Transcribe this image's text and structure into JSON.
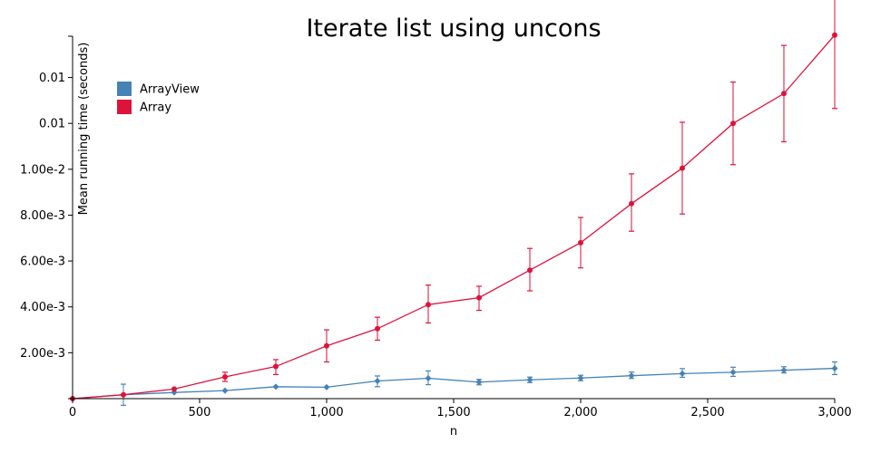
{
  "chart_data": {
    "type": "line",
    "title": "Iterate list using uncons",
    "xlabel": "n",
    "ylabel": "Mean running time (seconds)",
    "xlim": [
      0,
      3000
    ],
    "ylim": [
      0,
      0.0158
    ],
    "x_ticks": [
      {
        "value": 0,
        "label": "0"
      },
      {
        "value": 500,
        "label": "500"
      },
      {
        "value": 1000,
        "label": "1,000"
      },
      {
        "value": 1500,
        "label": "1,500"
      },
      {
        "value": 2000,
        "label": "2,000"
      },
      {
        "value": 2500,
        "label": "2,500"
      },
      {
        "value": 3000,
        "label": "3,000"
      }
    ],
    "y_ticks": [
      {
        "value": 0.002,
        "label": "2.00e-3"
      },
      {
        "value": 0.004,
        "label": "4.00e-3"
      },
      {
        "value": 0.006,
        "label": "6.00e-3"
      },
      {
        "value": 0.008,
        "label": "8.00e-3"
      },
      {
        "value": 0.01,
        "label": "1.00e-2"
      },
      {
        "value": 0.012,
        "label": "0.01"
      },
      {
        "value": 0.014,
        "label": "0.01"
      }
    ],
    "grid": false,
    "legend_position": "top-left",
    "x": [
      0,
      200,
      400,
      600,
      800,
      1000,
      1200,
      1400,
      1600,
      1800,
      2000,
      2200,
      2400,
      2600,
      2800,
      3000
    ],
    "series": [
      {
        "name": "ArrayView",
        "color": "#4682b4",
        "marker": "diamond",
        "values": [
          0.0,
          0.00017,
          0.00027,
          0.00035,
          0.00052,
          0.0005,
          0.00077,
          0.00089,
          0.00072,
          0.00082,
          0.0009,
          0.001,
          0.00109,
          0.00115,
          0.00124,
          0.00132
        ],
        "err_low": [
          0.0,
          0.00046,
          0.0,
          0.0,
          0.0,
          0.0,
          0.00025,
          0.00028,
          0.00012,
          0.00012,
          0.00012,
          0.00012,
          0.00016,
          0.00018,
          0.00012,
          0.00027
        ],
        "err_high": [
          0.0,
          0.00046,
          0.0,
          0.0,
          0.0,
          0.0,
          0.00022,
          0.00032,
          0.00012,
          0.00012,
          0.00012,
          0.00016,
          0.00022,
          0.00022,
          0.00015,
          0.00028
        ]
      },
      {
        "name": "Array",
        "color": "#dc143c",
        "marker": "circle",
        "values": [
          0.0,
          0.00017,
          0.00042,
          0.00095,
          0.0014,
          0.0023,
          0.00305,
          0.0041,
          0.0044,
          0.0056,
          0.0068,
          0.0085,
          0.01005,
          0.012,
          0.0133,
          0.01585
        ],
        "err_low": [
          0.0,
          0.0,
          0.0,
          0.0002,
          0.00035,
          0.0007,
          0.0005,
          0.0008,
          0.00055,
          0.0009,
          0.0011,
          0.0012,
          0.002,
          0.0018,
          0.0021,
          0.0032
        ],
        "err_high": [
          0.0,
          0.0,
          0.0,
          0.0002,
          0.0003,
          0.0007,
          0.0005,
          0.00085,
          0.0005,
          0.00095,
          0.0011,
          0.0013,
          0.002,
          0.0018,
          0.0021,
          0.0032
        ]
      }
    ]
  }
}
